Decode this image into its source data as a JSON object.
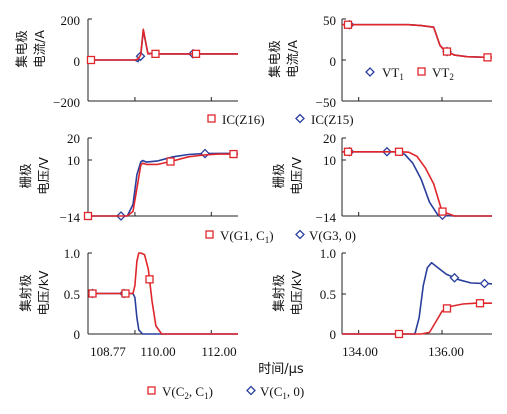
{
  "colors": {
    "red": "#e0262b",
    "blue": "#2a3f9c",
    "axis": "#222222"
  },
  "x_axis": {
    "label": "时间/μs",
    "left_ticks": [
      "108.77",
      "110.00",
      "112.00"
    ],
    "right_ticks": [
      "134.00",
      "136.00"
    ]
  },
  "legends": {
    "row1_right": {
      "blue": "VT",
      "blue_sub": "1",
      "red": "VT",
      "red_sub": "2"
    },
    "row1_bottom": {
      "red": "IC(Z16)",
      "blue": "IC(Z15)"
    },
    "row2_bottom": {
      "red": "V(G1, C",
      "red_sub": "1",
      "red_end": ")",
      "blue": "V(G3, 0)"
    },
    "row3_bottom": {
      "red": "V(C",
      "red_sub1": "2",
      "red_mid": ", C",
      "red_sub2": "1",
      "red_end": ")",
      "blue": "V(C",
      "blue_sub": "1",
      "blue_end": ", 0)"
    }
  },
  "chart_data": [
    {
      "id": "row1-left",
      "type": "line",
      "ylabel": [
        "集电极",
        "电流/A"
      ],
      "yticks": [
        "200",
        "0",
        "−200"
      ],
      "xlim": [
        108.77,
        112.7
      ],
      "ylim": [
        -200,
        200
      ],
      "series": [
        {
          "name": "IC(Z16)",
          "color": "red",
          "x": [
            108.77,
            109.9,
            110.0,
            110.08,
            110.15,
            110.22,
            110.28,
            110.34,
            110.42,
            110.5,
            110.7,
            111.0,
            111.5,
            112.0,
            112.7
          ],
          "y": [
            0,
            0,
            0,
            5,
            25,
            150,
            90,
            30,
            32,
            30,
            30,
            30,
            30,
            30,
            30
          ]
        },
        {
          "name": "IC(Z15)",
          "color": "blue",
          "x": [
            108.77,
            109.9,
            110.0,
            110.08,
            110.15,
            110.22,
            110.28,
            110.34,
            110.42,
            110.5,
            110.7,
            111.0,
            111.5,
            112.0,
            112.7
          ],
          "y": [
            0,
            0,
            0,
            -8,
            20,
            145,
            88,
            32,
            31,
            30,
            30,
            30,
            30,
            30,
            30
          ]
        }
      ]
    },
    {
      "id": "row1-right",
      "type": "line",
      "ylabel": [
        "集电极",
        "电流/A"
      ],
      "yticks": [
        "50",
        "0",
        "−50"
      ],
      "xlim": [
        133.6,
        137.2
      ],
      "ylim": [
        -50,
        50
      ],
      "series": [
        {
          "name": "VT1",
          "color": "blue",
          "x": [
            133.6,
            134.5,
            135.2,
            135.5,
            135.8,
            135.95,
            136.05,
            136.3,
            136.6,
            137.2
          ],
          "y": [
            43,
            43,
            43,
            42,
            40,
            18,
            12,
            6,
            4,
            3
          ]
        },
        {
          "name": "VT2",
          "color": "red",
          "x": [
            133.6,
            134.5,
            135.2,
            135.5,
            135.8,
            135.95,
            136.05,
            136.3,
            136.6,
            137.2
          ],
          "y": [
            43,
            43,
            43,
            42,
            40,
            18,
            12,
            6,
            4,
            3
          ]
        }
      ]
    },
    {
      "id": "row2-left",
      "type": "line",
      "ylabel": [
        "栅极",
        "电压/V"
      ],
      "yticks": [
        "20",
        "10",
        "−14"
      ],
      "xlim": [
        108.77,
        112.7
      ],
      "ylim": [
        -14,
        20
      ],
      "series": [
        {
          "name": "V(G1, C1)",
          "color": "red",
          "x": [
            108.77,
            109.8,
            109.95,
            110.05,
            110.15,
            110.2,
            110.3,
            110.6,
            111.0,
            111.4,
            111.8,
            112.2,
            112.7
          ],
          "y": [
            -14,
            -14,
            -12,
            -2,
            8,
            9,
            8.5,
            8.5,
            10,
            11.8,
            12.6,
            13,
            13
          ]
        },
        {
          "name": "V(G3, 0)",
          "color": "blue",
          "x": [
            108.77,
            109.8,
            109.95,
            110.05,
            110.15,
            110.2,
            110.3,
            110.6,
            111.0,
            111.4,
            111.8,
            112.2,
            112.7
          ],
          "y": [
            -14,
            -14,
            -9,
            4,
            9.5,
            10.2,
            9.5,
            10,
            11.8,
            12.8,
            13.2,
            13.3,
            13.3
          ]
        }
      ]
    },
    {
      "id": "row2-right",
      "type": "line",
      "ylabel": [
        "栅极",
        "电压/V"
      ],
      "yticks": [
        "20",
        "10",
        "−14"
      ],
      "xlim": [
        133.6,
        137.2
      ],
      "ylim": [
        -14,
        20
      ],
      "series": [
        {
          "name": "V(G1, C1)",
          "color": "red",
          "x": [
            133.6,
            135.0,
            135.2,
            135.4,
            135.6,
            135.8,
            136.0,
            136.3,
            137.2
          ],
          "y": [
            14,
            14,
            13.8,
            12,
            7,
            0,
            -12,
            -14,
            -14
          ]
        },
        {
          "name": "V(G3, 0)",
          "color": "blue",
          "x": [
            133.6,
            134.9,
            135.1,
            135.3,
            135.5,
            135.7,
            135.9,
            136.3,
            137.2
          ],
          "y": [
            14,
            14,
            13,
            9,
            2,
            -8,
            -13.5,
            -14,
            -14
          ]
        }
      ]
    },
    {
      "id": "row3-left",
      "type": "line",
      "ylabel": [
        "集射极",
        "电压/kV"
      ],
      "yticks": [
        "1.0",
        "0.5",
        "0"
      ],
      "xlim": [
        108.77,
        112.7
      ],
      "ylim": [
        0,
        1.0
      ],
      "series": [
        {
          "name": "V(C2, C1)",
          "color": "red",
          "x": [
            108.77,
            109.95,
            110.0,
            110.05,
            110.1,
            110.15,
            110.25,
            110.35,
            110.45,
            110.55,
            110.7,
            111.0,
            112.7
          ],
          "y": [
            0.5,
            0.5,
            0.6,
            0.9,
            1.0,
            1.0,
            0.98,
            0.8,
            0.4,
            0.1,
            0.0,
            0.0,
            0.0
          ]
        },
        {
          "name": "V(C1, 0)",
          "color": "blue",
          "x": [
            108.77,
            109.95,
            110.0,
            110.05,
            110.1,
            110.2,
            110.35,
            110.5,
            111.0,
            112.7
          ],
          "y": [
            0.5,
            0.5,
            0.45,
            0.2,
            0.05,
            0.0,
            0.0,
            0.0,
            0.0,
            0.0
          ]
        }
      ]
    },
    {
      "id": "row3-right",
      "type": "line",
      "ylabel": [
        "集射极",
        "电压/kV"
      ],
      "yticks": [
        "1.0",
        "0.5",
        "0"
      ],
      "xlim": [
        133.6,
        137.2
      ],
      "ylim": [
        0,
        1.0
      ],
      "series": [
        {
          "name": "V(C2, C1)",
          "color": "red",
          "x": [
            133.6,
            135.5,
            135.7,
            135.85,
            136.0,
            136.2,
            136.5,
            136.8,
            137.2
          ],
          "y": [
            0,
            0,
            0.02,
            0.15,
            0.28,
            0.34,
            0.37,
            0.38,
            0.38
          ]
        },
        {
          "name": "V(C1, 0)",
          "color": "blue",
          "x": [
            133.6,
            135.35,
            135.45,
            135.55,
            135.65,
            135.75,
            135.9,
            136.1,
            136.4,
            136.7,
            137.2
          ],
          "y": [
            0,
            0,
            0.2,
            0.6,
            0.82,
            0.88,
            0.82,
            0.74,
            0.67,
            0.63,
            0.62
          ]
        }
      ]
    }
  ]
}
